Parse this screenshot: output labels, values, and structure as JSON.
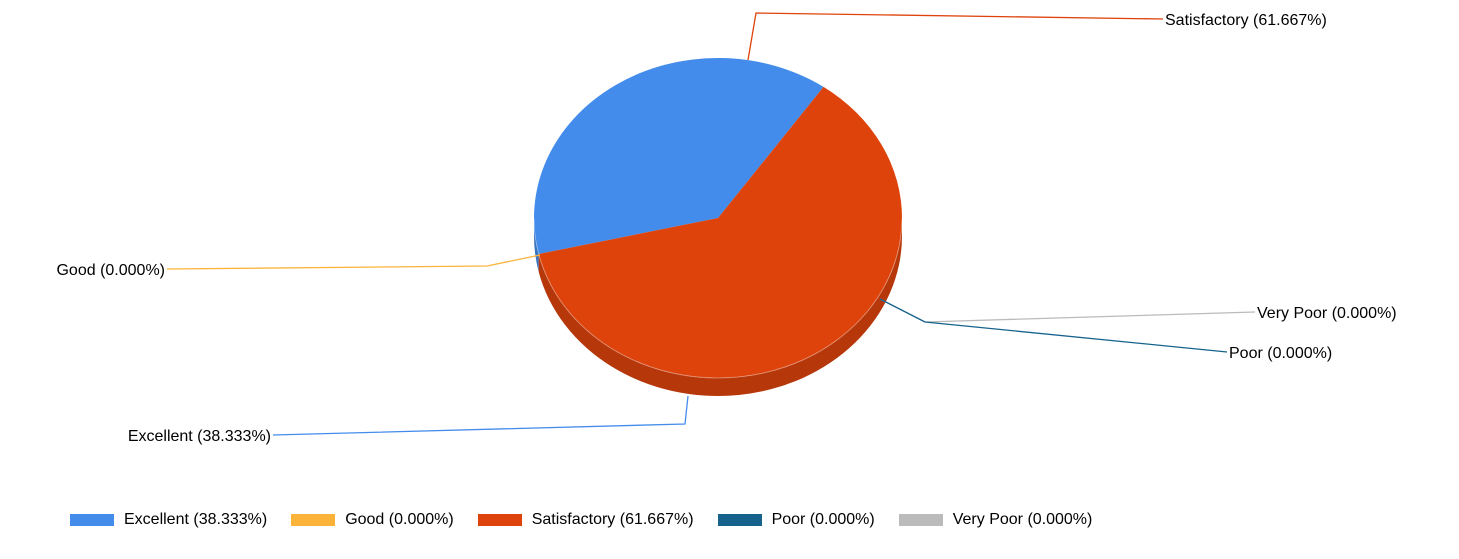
{
  "chart_data": {
    "type": "pie",
    "title": "",
    "style": "3d",
    "legend_position": "bottom",
    "slices": [
      {
        "name": "Excellent",
        "value": 38.333,
        "label": "Excellent (38.333%)",
        "color": "#438ceb"
      },
      {
        "name": "Good",
        "value": 0.0,
        "label": "Good (0.000%)",
        "color": "#fbb33a"
      },
      {
        "name": "Satisfactory",
        "value": 61.667,
        "label": "Satisfactory (61.667%)",
        "color": "#de430c"
      },
      {
        "name": "Poor",
        "value": 0.0,
        "label": "Poor (0.000%)",
        "color": "#15638d"
      },
      {
        "name": "Very Poor",
        "value": 0.0,
        "label": "Very Poor (0.000%)",
        "color": "#bbbbbb"
      }
    ]
  },
  "legend": {
    "items": [
      {
        "label": "Excellent (38.333%)",
        "color": "#438ceb"
      },
      {
        "label": "Good (0.000%)",
        "color": "#fbb33a"
      },
      {
        "label": "Satisfactory (61.667%)",
        "color": "#de430c"
      },
      {
        "label": "Poor (0.000%)",
        "color": "#15638d"
      },
      {
        "label": "Very Poor (0.000%)",
        "color": "#bbbbbb"
      }
    ]
  }
}
